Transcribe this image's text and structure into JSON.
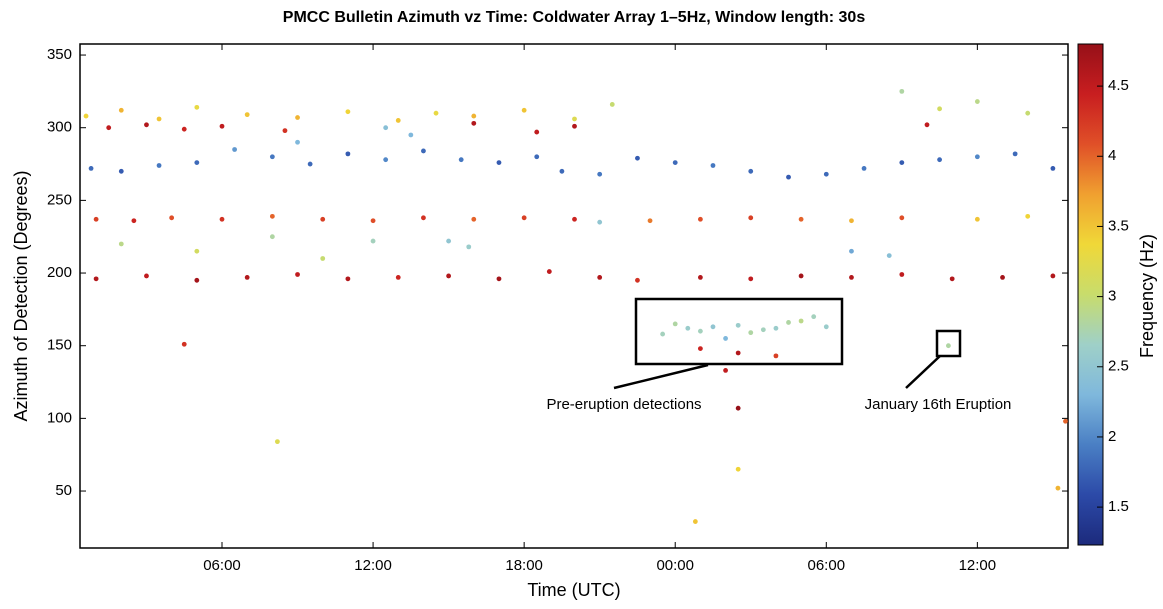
{
  "chart_data": {
    "type": "scatter",
    "title": "PMCC Bulletin Azimuth vz Time: Coldwater Array 1–5Hz, Window length: 30s",
    "xlabel": "Time (UTC)",
    "ylabel": "Azimuth of Detection (Degrees)",
    "colorbar_label": "Frequency (Hz)",
    "xlim": [
      0.36,
      39.6
    ],
    "xticks": [
      {
        "value": 6,
        "label": "06:00"
      },
      {
        "value": 12,
        "label": "12:00"
      },
      {
        "value": 18,
        "label": "18:00"
      },
      {
        "value": 24,
        "label": "00:00"
      },
      {
        "value": 30,
        "label": "06:00"
      },
      {
        "value": 36,
        "label": "12:00"
      }
    ],
    "ylim": [
      10.8,
      357.6
    ],
    "yticks": [
      50,
      100,
      150,
      200,
      250,
      300,
      350
    ],
    "clim": [
      1.23,
      4.8
    ],
    "cticks": [
      1.5,
      2,
      2.5,
      3,
      3.5,
      4,
      4.5
    ],
    "colormap": [
      "#1c2a7c",
      "#2c4aa8",
      "#4a7fc4",
      "#7fb8dc",
      "#9fd0c8",
      "#c8dc6c",
      "#f0d838",
      "#f0a030",
      "#e05028",
      "#c81e20",
      "#961018"
    ],
    "x": [
      1,
      3,
      5,
      7,
      9,
      11,
      13,
      15,
      17,
      19,
      21,
      22.5,
      25,
      27,
      29,
      31,
      33,
      35,
      37,
      39,
      1,
      2.5,
      4,
      6,
      8,
      10,
      12,
      14,
      16,
      18,
      20,
      23,
      25,
      27,
      29,
      31,
      33,
      36,
      38,
      0.8,
      2,
      3.5,
      5,
      6.5,
      8,
      9.5,
      11,
      12.5,
      14,
      15.5,
      17,
      18.5,
      19.5,
      21,
      22.5,
      24,
      25.5,
      27,
      28.5,
      30,
      31.5,
      33,
      34.5,
      36,
      37.5,
      39,
      0.6,
      2,
      3.5,
      5,
      7,
      9,
      11,
      13,
      14.5,
      16,
      18,
      20,
      21.5,
      33,
      34.5,
      36,
      38,
      1.5,
      3,
      4.5,
      6,
      8.5,
      16,
      18.5,
      20,
      34,
      12.5,
      13.5,
      15,
      15.8,
      21,
      31,
      32.5,
      9,
      2,
      5,
      8,
      10,
      12,
      23.5,
      24,
      24.5,
      25,
      25.5,
      26,
      26.5,
      27,
      27.5,
      28,
      28.5,
      29,
      29.5,
      30,
      25,
      26.5,
      28,
      4.5,
      8.2,
      26.5,
      26.5,
      24.8,
      39.5,
      39.2,
      26,
      34.85
    ],
    "y": [
      196,
      198,
      195,
      197,
      199,
      196,
      197,
      198,
      196,
      201,
      197,
      195,
      197,
      196,
      198,
      197,
      199,
      196,
      197,
      198,
      237,
      236,
      238,
      237,
      239,
      237,
      236,
      238,
      237,
      238,
      237,
      236,
      237,
      238,
      237,
      236,
      238,
      237,
      239,
      272,
      270,
      274,
      276,
      285,
      280,
      275,
      282,
      278,
      284,
      278,
      276,
      280,
      270,
      268,
      279,
      276,
      274,
      270,
      266,
      268,
      272,
      276,
      278,
      280,
      282,
      272,
      308,
      312,
      306,
      314,
      309,
      307,
      311,
      305,
      310,
      308,
      312,
      306,
      316,
      325,
      313,
      318,
      310,
      300,
      302,
      299,
      301,
      298,
      303,
      297,
      301,
      302,
      300,
      295,
      222,
      218,
      235,
      215,
      212,
      290,
      220,
      215,
      225,
      210,
      222,
      158,
      165,
      162,
      160,
      163,
      155,
      164,
      159,
      161,
      162,
      166,
      167,
      170,
      163,
      148,
      145,
      143,
      151,
      84,
      107,
      65,
      29,
      98,
      52,
      133,
      150
    ],
    "c": [
      4.6,
      4.5,
      4.7,
      4.6,
      4.5,
      4.6,
      4.4,
      4.6,
      4.7,
      4.5,
      4.6,
      4.3,
      4.6,
      4.5,
      4.7,
      4.6,
      4.5,
      4.6,
      4.7,
      4.6,
      4.2,
      4.4,
      4.1,
      4.3,
      4.0,
      4.2,
      4.1,
      4.3,
      4.0,
      4.2,
      4.4,
      3.9,
      4.1,
      4.2,
      4.0,
      3.6,
      4.1,
      3.5,
      3.4,
      1.8,
      1.7,
      1.9,
      1.8,
      2.1,
      1.9,
      1.8,
      1.7,
      2.0,
      1.8,
      1.9,
      1.7,
      1.8,
      1.8,
      1.9,
      1.7,
      1.8,
      1.9,
      1.8,
      1.7,
      1.8,
      1.9,
      1.7,
      1.8,
      2.0,
      1.8,
      1.7,
      3.4,
      3.6,
      3.5,
      3.3,
      3.5,
      3.6,
      3.4,
      3.5,
      3.3,
      3.6,
      3.5,
      3.2,
      3.0,
      2.8,
      3.1,
      2.9,
      3.0,
      4.5,
      4.6,
      4.4,
      4.5,
      4.3,
      4.6,
      4.5,
      4.6,
      4.5,
      2.4,
      2.3,
      2.5,
      2.6,
      2.5,
      2.2,
      2.4,
      2.3,
      2.9,
      3.1,
      2.8,
      3.0,
      2.7,
      2.7,
      2.8,
      2.6,
      2.7,
      2.5,
      2.3,
      2.6,
      2.8,
      2.7,
      2.6,
      2.8,
      2.9,
      2.7,
      2.6,
      4.4,
      4.6,
      4.2,
      4.3,
      3.2,
      4.8,
      3.4,
      3.5,
      4.0,
      3.6,
      4.5,
      2.8
    ],
    "annotations": [
      "Pre-eruption detections",
      "January 16th Eruption"
    ]
  }
}
